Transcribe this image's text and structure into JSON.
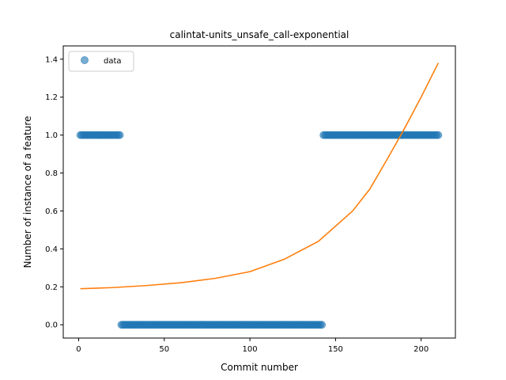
{
  "chart_data": {
    "type": "scatter",
    "title": "calintat-units_unsafe_call-exponential",
    "xlabel": "Commit number",
    "ylabel": "Number of instance of a feature",
    "xlim": [
      -9,
      220
    ],
    "ylim": [
      -0.07,
      1.47
    ],
    "xticks": [
      0,
      50,
      100,
      150,
      200
    ],
    "yticks": [
      0.0,
      0.2,
      0.4,
      0.6,
      0.8,
      1.0,
      1.2,
      1.4
    ],
    "grid": false,
    "legend": {
      "position": "top-left",
      "entries": [
        "data"
      ]
    },
    "colors": {
      "data": "#1f77b4",
      "fit": "#ff7f0e"
    },
    "series": [
      {
        "name": "data",
        "kind": "scatter",
        "segments": [
          {
            "x_start": 1,
            "x_end": 24,
            "y": 1
          },
          {
            "x_start": 25,
            "x_end": 142,
            "y": 0
          },
          {
            "x_start": 143,
            "x_end": 210,
            "y": 1
          }
        ]
      },
      {
        "kind": "line",
        "x": [
          1,
          20,
          40,
          60,
          80,
          100,
          120,
          140,
          160,
          170,
          180,
          190,
          200,
          210
        ],
        "y": [
          0.19,
          0.196,
          0.207,
          0.222,
          0.245,
          0.28,
          0.345,
          0.44,
          0.6,
          0.715,
          0.87,
          1.03,
          1.2,
          1.38
        ]
      }
    ]
  }
}
